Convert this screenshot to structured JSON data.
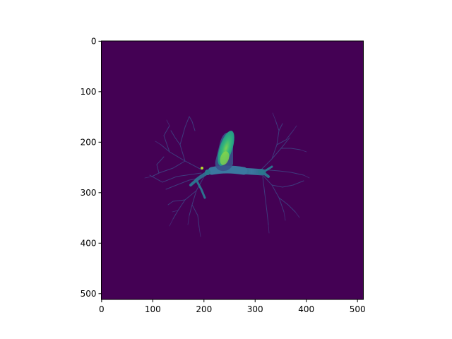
{
  "figure": {
    "background": "#ffffff",
    "image_background": "#440154",
    "colormap": "viridis",
    "colormap_stops": [
      "#440154",
      "#3b528b",
      "#21918c",
      "#5ec962",
      "#fde725"
    ],
    "axes_color": "#000000"
  },
  "axes": {
    "x": {
      "range": [
        0,
        511
      ],
      "ticks": [
        0,
        100,
        200,
        300,
        400,
        500
      ],
      "tick_labels": [
        "0",
        "100",
        "200",
        "300",
        "400",
        "500"
      ]
    },
    "y": {
      "range": [
        0,
        511
      ],
      "ticks": [
        0,
        100,
        200,
        300,
        400,
        500
      ],
      "tick_labels": [
        "0",
        "100",
        "200",
        "300",
        "400",
        "500"
      ],
      "direction": "down"
    }
  },
  "image": {
    "description_hidden": "Grayscale volume slice rendered in viridis colormap showing bronchial airway tree",
    "size": [
      512,
      512
    ]
  }
}
